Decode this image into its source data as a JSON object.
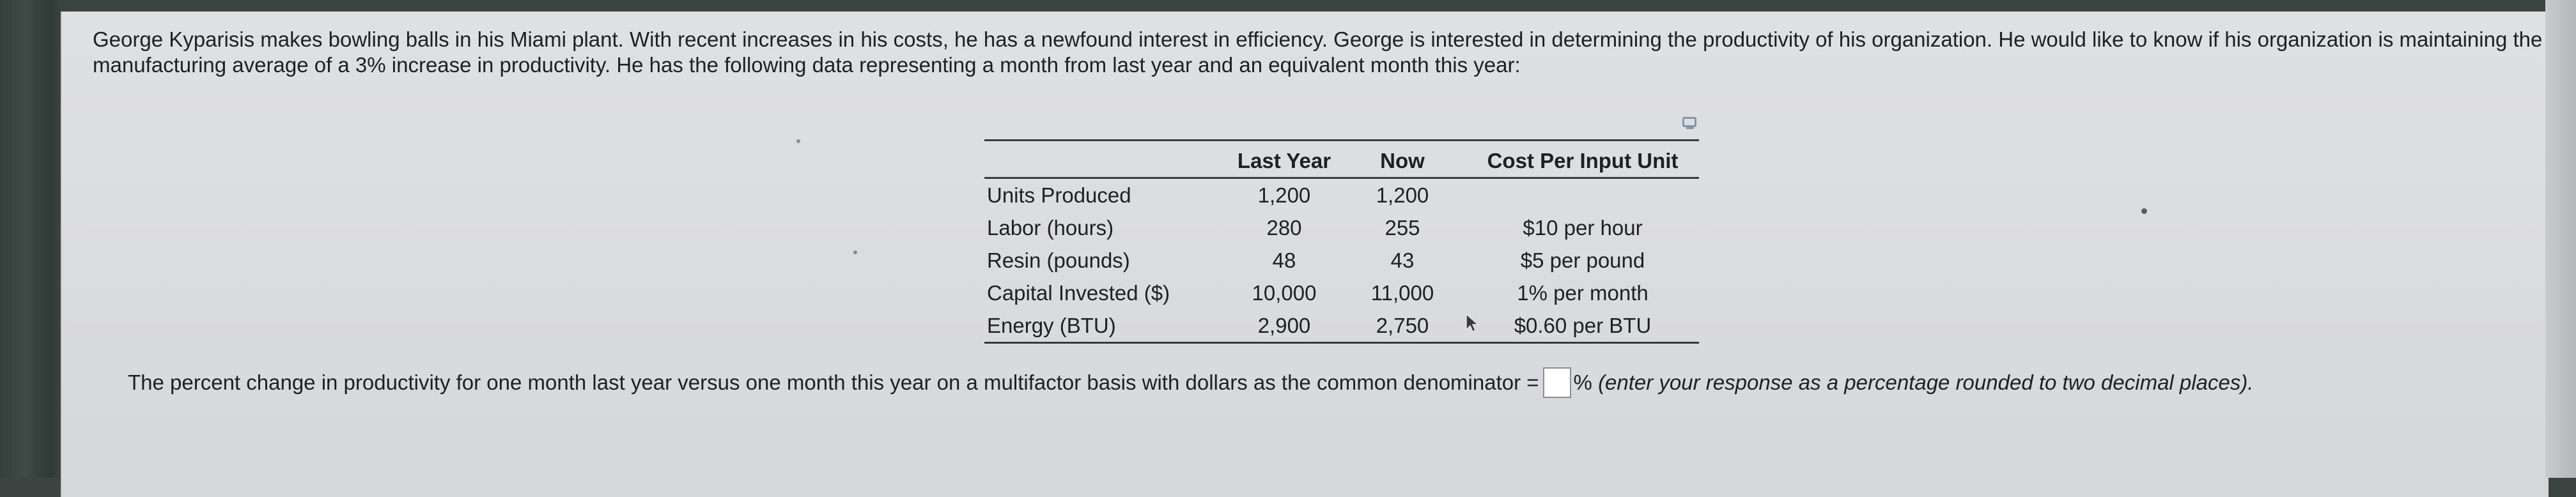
{
  "intro_text": "George Kyparisis makes bowling balls in his Miami plant. With recent increases in his costs, he has a newfound interest in efficiency. George is interested in determining the productivity of his organization. He would like to know if his organization is maintaining the manufacturing average of a 3% increase in productivity. He has the following data representing a month from last year and an equivalent month this year:",
  "table": {
    "headers": [
      "",
      "Last Year",
      "Now",
      "Cost Per Input Unit"
    ],
    "rows": [
      {
        "label": "Units Produced",
        "last_year": "1,200",
        "now": "1,200",
        "cost": ""
      },
      {
        "label": "Labor (hours)",
        "last_year": "280",
        "now": "255",
        "cost": "$10 per hour"
      },
      {
        "label": "Resin (pounds)",
        "last_year": "48",
        "now": "43",
        "cost": "$5 per pound"
      },
      {
        "label": "Capital Invested ($)",
        "last_year": "10,000",
        "now": "11,000",
        "cost": "1% per month"
      },
      {
        "label": "Energy (BTU)",
        "last_year": "2,900",
        "now": "2,750",
        "cost": "$0.60 per BTU"
      }
    ]
  },
  "question": {
    "prompt": "The percent change in productivity for one month last year versus one month this year on a multifactor basis with dollars as the common denominator =",
    "answer_value": "",
    "unit": "%",
    "hint": "(enter your response as a percentage rounded to two decimal places)."
  },
  "icons": {
    "expand": "expand-table-icon",
    "cursor": "mouse-pointer-icon"
  }
}
